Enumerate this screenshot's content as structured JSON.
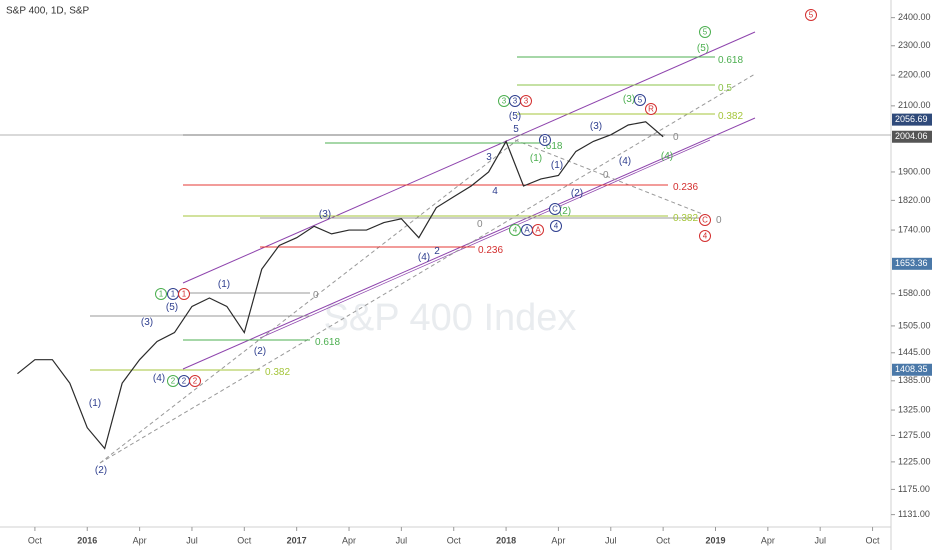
{
  "chart_data": {
    "type": "line",
    "title": "S&P 400, 1D, S&P",
    "watermark": "S&P 400 Index",
    "log_scale": true,
    "color": "#2b2b2b",
    "x": [
      "2015-09",
      "2015-10",
      "2015-11",
      "2015-12",
      "2016-01",
      "2016-02",
      "2016-03",
      "2016-04",
      "2016-05",
      "2016-06",
      "2016-07",
      "2016-08",
      "2016-09",
      "2016-10",
      "2016-11",
      "2016-12",
      "2017-01",
      "2017-02",
      "2017-03",
      "2017-04",
      "2017-05",
      "2017-06",
      "2017-07",
      "2017-08",
      "2017-09",
      "2017-10",
      "2017-11",
      "2017-12",
      "2018-01",
      "2018-02",
      "2018-03",
      "2018-04",
      "2018-05",
      "2018-06",
      "2018-07",
      "2018-08",
      "2018-09",
      "2018-10"
    ],
    "values": [
      1400,
      1430,
      1430,
      1380,
      1290,
      1250,
      1380,
      1430,
      1470,
      1490,
      1550,
      1570,
      1550,
      1490,
      1640,
      1700,
      1720,
      1750,
      1730,
      1740,
      1740,
      1760,
      1770,
      1720,
      1800,
      1830,
      1860,
      1900,
      1990,
      1860,
      1880,
      1890,
      1960,
      1990,
      2010,
      2040,
      2050,
      2004.06
    ],
    "xlim": [
      "2015-08",
      "2019-11"
    ],
    "xticks": [
      {
        "value": "2015-10",
        "label": "Oct"
      },
      {
        "value": "2016-01",
        "label": "2016"
      },
      {
        "value": "2016-04",
        "label": "Apr"
      },
      {
        "value": "2016-07",
        "label": "Jul"
      },
      {
        "value": "2016-10",
        "label": "Oct"
      },
      {
        "value": "2017-01",
        "label": "2017"
      },
      {
        "value": "2017-04",
        "label": "Apr"
      },
      {
        "value": "2017-07",
        "label": "Jul"
      },
      {
        "value": "2017-10",
        "label": "Oct"
      },
      {
        "value": "2018-01",
        "label": "2018"
      },
      {
        "value": "2018-04",
        "label": "Apr"
      },
      {
        "value": "2018-07",
        "label": "Jul"
      },
      {
        "value": "2018-10",
        "label": "Oct"
      },
      {
        "value": "2019-01",
        "label": "2019"
      },
      {
        "value": "2019-04",
        "label": "Apr"
      },
      {
        "value": "2019-07",
        "label": "Jul"
      },
      {
        "value": "2019-10",
        "label": "Oct"
      }
    ],
    "ylim": [
      1110,
      2465
    ],
    "yticks": [
      {
        "value": 2400,
        "label": "2400.00"
      },
      {
        "value": 2300,
        "label": "2300.00"
      },
      {
        "value": 2200,
        "label": "2200.00"
      },
      {
        "value": 2100,
        "label": "2100.00"
      },
      {
        "value": 1900,
        "label": "1900.00"
      },
      {
        "value": 1820,
        "label": "1820.00"
      },
      {
        "value": 1740,
        "label": "1740.00"
      },
      {
        "value": 1580,
        "label": "1580.00"
      },
      {
        "value": 1505,
        "label": "1505.00"
      },
      {
        "value": 1445,
        "label": "1445.00"
      },
      {
        "value": 1385,
        "label": "1385.00"
      },
      {
        "value": 1325,
        "label": "1325.00"
      },
      {
        "value": 1275,
        "label": "1275.00"
      },
      {
        "value": 1225,
        "label": "1225.00"
      },
      {
        "value": 1175,
        "label": "1175.00"
      },
      {
        "value": 1131,
        "label": "1131.00"
      }
    ],
    "price_labels": [
      2056.69,
      2004.06,
      1653.36,
      1408.35
    ],
    "price_label_colors": [
      "#2f4a7a",
      "#555555",
      "#4a78a8",
      "#4a78a8"
    ],
    "annotations": [
      "0.618",
      "0.5",
      "0.382",
      "0",
      "0.236",
      "0.382",
      "0",
      "0",
      "0",
      "0.236",
      "0.618",
      "0.382",
      "0",
      ".618",
      "(1)",
      "(2)",
      "(3)",
      "(4)",
      "(5)",
      "(1)",
      "(2)",
      "(3)",
      "(4)",
      "2",
      "3",
      "4",
      "5",
      "(5)",
      "(1)",
      "(2)",
      "(3)",
      "(4)",
      "(1)",
      "(2)",
      "(3)",
      "(4)",
      "(5)",
      "5",
      "5",
      "R",
      "B",
      "C",
      "C",
      "4",
      "4",
      "4",
      "A",
      "A",
      "1",
      "1",
      "1",
      "2",
      "2",
      "2",
      "3",
      "3",
      "3",
      "5"
    ]
  }
}
